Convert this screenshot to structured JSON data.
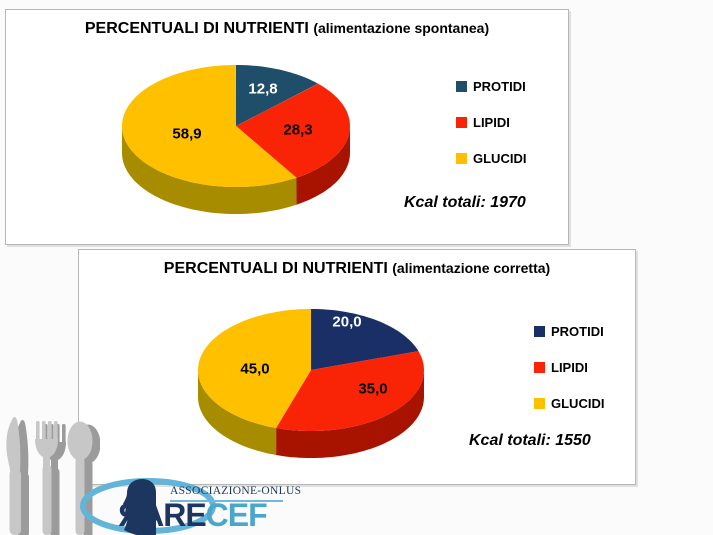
{
  "chart_data": [
    {
      "type": "pie",
      "title": "PERCENTUALI DI NUTRIENTI",
      "subtitle": "(alimentazione spontanea)",
      "categories": [
        "PROTIDI",
        "LIPIDI",
        "GLUCIDI"
      ],
      "values": [
        12.8,
        28.3,
        58.9
      ],
      "data_labels": [
        "12,8",
        "28,3",
        "58,9"
      ],
      "colors": [
        "#1F4E6A",
        "#F92406",
        "#FFC000"
      ],
      "side_colors": [
        "#122F42",
        "#A81300",
        "#A78C00"
      ],
      "label_colors": [
        "#FFFFFF",
        "#000000",
        "#000000"
      ],
      "annotation": "Kcal totali: 1970",
      "legend_position": "right",
      "start_angle_deg": 0,
      "effect_3d": true
    },
    {
      "type": "pie",
      "title": "PERCENTUALI DI NUTRIENTI",
      "subtitle": "(alimentazione corretta)",
      "categories": [
        "PROTIDI",
        "LIPIDI",
        "GLUCIDI"
      ],
      "values": [
        20.0,
        35.0,
        45.0
      ],
      "data_labels": [
        "20,0",
        "35,0",
        "45,0"
      ],
      "colors": [
        "#1A2F66",
        "#F92406",
        "#FFC000"
      ],
      "side_colors": [
        "#101E42",
        "#A81300",
        "#A78C00"
      ],
      "label_colors": [
        "#FFFFFF",
        "#000000",
        "#000000"
      ],
      "annotation": "Kcal totali: 1550",
      "legend_position": "right",
      "start_angle_deg": 0,
      "effect_3d": true
    }
  ],
  "logo": {
    "org_line": "ASSOCIAZIONE-ONLUS",
    "brand_reversed_letter": "R",
    "brand_mid": "ARE",
    "brand_suffix": "CEF",
    "navy": "#1D3660",
    "light_blue": "#4BA6CB"
  }
}
